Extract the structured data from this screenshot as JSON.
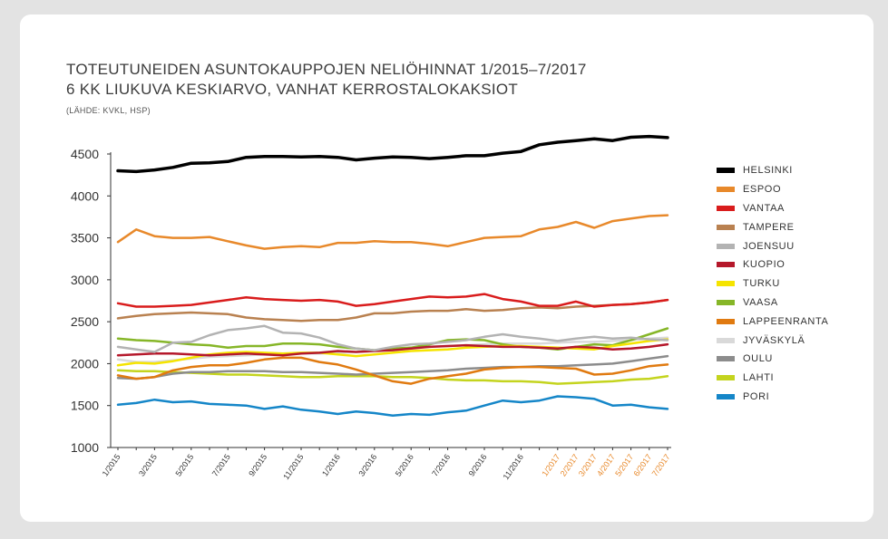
{
  "title_line1": "TOTEUTUNEIDEN ASUNTOKAUPPOJEN NELIÖHINNAT 1/2015–7/2017",
  "title_line2": "6 KK LIUKUVA KESKIARVO, VANHAT KERROSTALOKAKSIOT",
  "source": "(LÄHDE: KVKL, HSP)",
  "chart_data": {
    "type": "line",
    "ylim": [
      1000,
      4500
    ],
    "yticks": [
      1000,
      1500,
      2000,
      2500,
      3000,
      3500,
      4000,
      4500
    ],
    "grid": false,
    "legend_position": "right",
    "x": [
      "1/2015",
      "2/2015",
      "3/2015",
      "4/2015",
      "5/2015",
      "6/2015",
      "7/2015",
      "8/2015",
      "9/2015",
      "10/2015",
      "11/2015",
      "12/2015",
      "1/2016",
      "2/2016",
      "3/2016",
      "4/2016",
      "5/2016",
      "6/2016",
      "7/2016",
      "8/2016",
      "9/2016",
      "10/2016",
      "11/2016",
      "12/2016",
      "1/2017",
      "2/2017",
      "3/2017",
      "4/2017",
      "5/2017",
      "6/2017",
      "7/2017"
    ],
    "x_tick_labels": [
      {
        "label": "1/2015",
        "color": "#333333"
      },
      {
        "label": "3/2015",
        "color": "#333333"
      },
      {
        "label": "5/2015",
        "color": "#333333"
      },
      {
        "label": "7/2015",
        "color": "#333333"
      },
      {
        "label": "9/2015",
        "color": "#333333"
      },
      {
        "label": "11/2015",
        "color": "#333333"
      },
      {
        "label": "1/2016",
        "color": "#333333"
      },
      {
        "label": "3/2016",
        "color": "#333333"
      },
      {
        "label": "5/2016",
        "color": "#333333"
      },
      {
        "label": "7/2016",
        "color": "#333333"
      },
      {
        "label": "9/2016",
        "color": "#333333"
      },
      {
        "label": "11/2016",
        "color": "#333333"
      },
      {
        "label": "1/2017",
        "color": "#e8892b"
      },
      {
        "label": "2/2017",
        "color": "#e8892b"
      },
      {
        "label": "3/2017",
        "color": "#e8892b"
      },
      {
        "label": "4/2017",
        "color": "#e8892b"
      },
      {
        "label": "5/2017",
        "color": "#e8892b"
      },
      {
        "label": "6/2017",
        "color": "#e8892b"
      },
      {
        "label": "7/2017",
        "color": "#e8892b"
      }
    ],
    "series": [
      {
        "name": "HELSINKI",
        "color": "#000000",
        "width": 3.5,
        "values": [
          4300,
          4290,
          4310,
          4340,
          4390,
          4395,
          4410,
          4460,
          4470,
          4470,
          4465,
          4470,
          4460,
          4430,
          4450,
          4465,
          4460,
          4445,
          4460,
          4480,
          4480,
          4510,
          4530,
          4610,
          4640,
          4660,
          4680,
          4660,
          4700,
          4710,
          4695
        ]
      },
      {
        "name": "ESPOO",
        "color": "#e8892b",
        "width": 2.5,
        "values": [
          3450,
          3600,
          3520,
          3500,
          3500,
          3510,
          3460,
          3410,
          3370,
          3390,
          3400,
          3390,
          3440,
          3440,
          3460,
          3450,
          3450,
          3430,
          3400,
          3450,
          3500,
          3510,
          3520,
          3600,
          3630,
          3690,
          3620,
          3700,
          3730,
          3760,
          3770
        ]
      },
      {
        "name": "VANTAA",
        "color": "#d91c1c",
        "width": 2.5,
        "values": [
          2720,
          2680,
          2680,
          2690,
          2700,
          2730,
          2760,
          2790,
          2770,
          2760,
          2750,
          2760,
          2740,
          2690,
          2710,
          2740,
          2770,
          2800,
          2790,
          2800,
          2830,
          2770,
          2740,
          2690,
          2690,
          2740,
          2680,
          2700,
          2710,
          2730,
          2760
        ]
      },
      {
        "name": "TAMPERE",
        "color": "#b98150",
        "width": 2.5,
        "values": [
          2540,
          2570,
          2590,
          2600,
          2610,
          2600,
          2590,
          2550,
          2530,
          2520,
          2510,
          2520,
          2520,
          2550,
          2600,
          2600,
          2620,
          2630,
          2630,
          2650,
          2630,
          2640,
          2660,
          2670,
          2660,
          2680,
          2690,
          2700,
          2710,
          2730,
          2760
        ]
      },
      {
        "name": "JOENSUU",
        "color": "#b3b3b3",
        "width": 2.5,
        "values": [
          2200,
          2170,
          2140,
          2250,
          2260,
          2340,
          2400,
          2420,
          2450,
          2370,
          2360,
          2310,
          2230,
          2180,
          2160,
          2200,
          2230,
          2240,
          2260,
          2280,
          2320,
          2350,
          2320,
          2300,
          2270,
          2300,
          2320,
          2300,
          2310,
          2290,
          2280
        ]
      },
      {
        "name": "KUOPIO",
        "color": "#b5182b",
        "width": 2.5,
        "values": [
          2100,
          2110,
          2120,
          2120,
          2110,
          2100,
          2110,
          2120,
          2110,
          2100,
          2120,
          2130,
          2150,
          2140,
          2150,
          2160,
          2180,
          2200,
          2210,
          2220,
          2210,
          2200,
          2200,
          2190,
          2180,
          2200,
          2190,
          2170,
          2180,
          2200,
          2230
        ]
      },
      {
        "name": "TURKU",
        "color": "#f5e400",
        "width": 2.5,
        "values": [
          1980,
          2010,
          2000,
          2030,
          2070,
          2110,
          2130,
          2140,
          2130,
          2120,
          2130,
          2130,
          2110,
          2090,
          2110,
          2130,
          2150,
          2160,
          2170,
          2190,
          2200,
          2210,
          2210,
          2200,
          2190,
          2180,
          2170,
          2210,
          2240,
          2270,
          2290
        ]
      },
      {
        "name": "VAASA",
        "color": "#86b628",
        "width": 2.5,
        "values": [
          2300,
          2280,
          2270,
          2250,
          2230,
          2220,
          2190,
          2210,
          2210,
          2240,
          2240,
          2230,
          2200,
          2180,
          2160,
          2180,
          2190,
          2230,
          2280,
          2290,
          2280,
          2230,
          2200,
          2190,
          2170,
          2200,
          2230,
          2220,
          2280,
          2350,
          2420
        ]
      },
      {
        "name": "LAPPEENRANTA",
        "color": "#e07a10",
        "width": 2.5,
        "values": [
          1860,
          1820,
          1840,
          1920,
          1960,
          1980,
          1980,
          2010,
          2050,
          2070,
          2070,
          2020,
          1990,
          1930,
          1860,
          1790,
          1760,
          1820,
          1850,
          1880,
          1930,
          1950,
          1960,
          1960,
          1950,
          1940,
          1870,
          1880,
          1920,
          1970,
          1990
        ]
      },
      {
        "name": "JYVÄSKYLÄ",
        "color": "#d9d9d9",
        "width": 2.5,
        "values": [
          2050,
          2020,
          2020,
          2040,
          2060,
          2080,
          2090,
          2100,
          2110,
          2110,
          2120,
          2120,
          2130,
          2140,
          2150,
          2170,
          2190,
          2200,
          2210,
          2220,
          2230,
          2240,
          2240,
          2240,
          2250,
          2260,
          2260,
          2270,
          2280,
          2300,
          2310
        ]
      },
      {
        "name": "OULU",
        "color": "#8c8c8c",
        "width": 2.5,
        "values": [
          1830,
          1820,
          1840,
          1880,
          1900,
          1900,
          1910,
          1910,
          1910,
          1900,
          1900,
          1890,
          1880,
          1870,
          1880,
          1890,
          1900,
          1910,
          1920,
          1940,
          1950,
          1960,
          1960,
          1970,
          1970,
          1980,
          1990,
          2000,
          2030,
          2060,
          2090
        ]
      },
      {
        "name": "LAHTI",
        "color": "#c4d41e",
        "width": 2.5,
        "values": [
          1920,
          1910,
          1910,
          1900,
          1890,
          1880,
          1870,
          1870,
          1860,
          1850,
          1840,
          1840,
          1850,
          1850,
          1850,
          1840,
          1840,
          1830,
          1810,
          1800,
          1800,
          1790,
          1790,
          1780,
          1760,
          1770,
          1780,
          1790,
          1810,
          1820,
          1850
        ]
      },
      {
        "name": "PORI",
        "color": "#1586c8",
        "width": 2.5,
        "values": [
          1510,
          1530,
          1570,
          1540,
          1550,
          1520,
          1510,
          1500,
          1460,
          1490,
          1450,
          1430,
          1400,
          1430,
          1410,
          1380,
          1400,
          1390,
          1420,
          1440,
          1500,
          1560,
          1540,
          1560,
          1610,
          1600,
          1580,
          1500,
          1510,
          1480,
          1460
        ]
      }
    ]
  }
}
